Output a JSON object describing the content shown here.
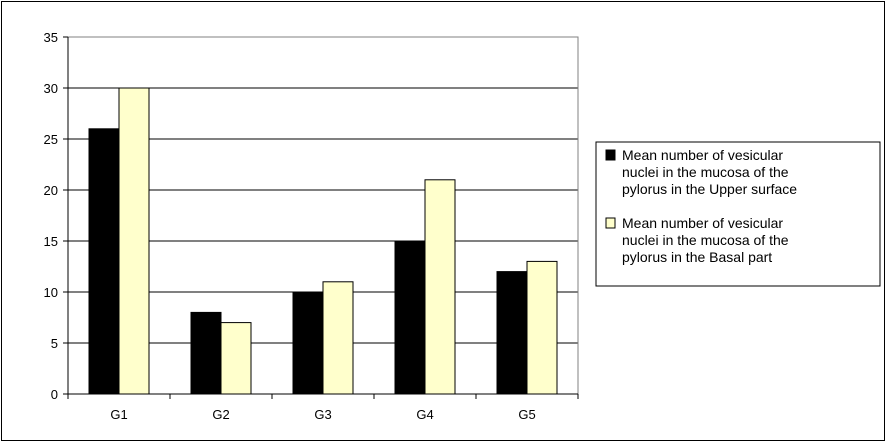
{
  "chart_data": {
    "type": "bar",
    "title": "",
    "xlabel": "",
    "ylabel": "",
    "categories": [
      "G1",
      "G2",
      "G3",
      "G4",
      "G5"
    ],
    "ylim": [
      0,
      35
    ],
    "yticks": [
      0,
      5,
      10,
      15,
      20,
      25,
      30,
      35
    ],
    "grid": true,
    "legend_position": "right",
    "series": [
      {
        "name": "Mean number of vesicular nuclei in the mucosa of the pylorus in the Upper surface",
        "legend_lines": [
          "Mean number of vesicular",
          "nuclei in the mucosa of the",
          "pylorus in the Upper surface"
        ],
        "color": "#000000",
        "values": [
          26,
          8,
          10,
          15,
          12
        ]
      },
      {
        "name": "Mean number of vesicular nuclei in the mucosa of the pylorus in the Basal part",
        "legend_lines": [
          "Mean number of vesicular",
          "nuclei in the mucosa of the",
          "pylorus in the Basal part"
        ],
        "color": "#ffffcc",
        "values": [
          30,
          7,
          11,
          21,
          13
        ]
      }
    ]
  }
}
